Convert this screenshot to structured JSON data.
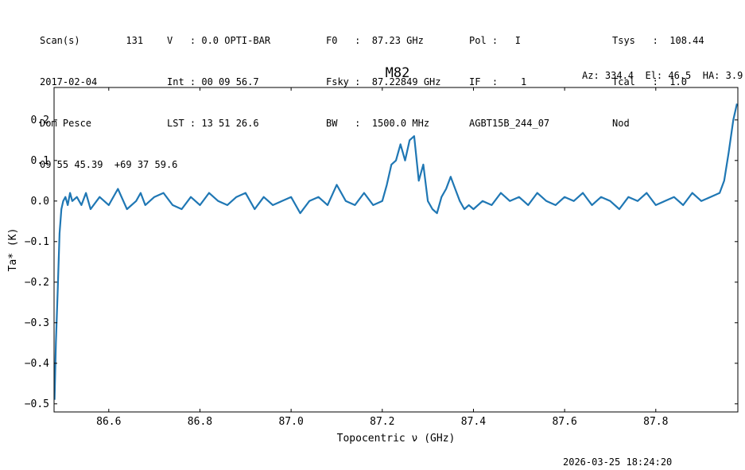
{
  "header": {
    "col1": [
      "Scan(s)        131",
      "2017-02-04",
      "Dom Pesce",
      "09 55 45.39  +69 37 59.6"
    ],
    "col2": [
      "V   : 0.0 OPTI-BAR",
      "Int : 00 09 56.7",
      "LST : 13 51 26.6"
    ],
    "col3": [
      "F0   :  87.23 GHz",
      "Fsky :  87.22849 GHz",
      "BW   :  1500.0 MHz"
    ],
    "col4": [
      "Pol :   I",
      "IF  :    1",
      "AGBT15B_244_07"
    ],
    "col5": [
      "Tsys   :  108.44",
      "Tcal   :  1.0",
      "Nod"
    ],
    "azelha": "Az: 334.4  El: 46.5  HA: 3.9"
  },
  "footer_timestamp": "2026-03-25 18:24:20",
  "colors": {
    "line": "#1f77b4"
  },
  "chart_data": {
    "type": "line",
    "title": "M82",
    "xlabel": "Topocentric ν (GHz)",
    "ylabel": "Ta* (K)",
    "xlim": [
      86.48,
      87.98
    ],
    "ylim": [
      -0.52,
      0.28
    ],
    "xticks": [
      86.6,
      86.8,
      87.0,
      87.2,
      87.4,
      87.6,
      87.8
    ],
    "xtick_labels": [
      "86.6",
      "86.8",
      "87.0",
      "87.2",
      "87.4",
      "87.6",
      "87.8"
    ],
    "yticks": [
      0.2,
      0.1,
      0.0,
      -0.1,
      -0.2,
      -0.3,
      -0.4,
      -0.5
    ],
    "ytick_labels": [
      "0.2",
      "0.1",
      "0.0",
      "−0.1",
      "−0.2",
      "−0.3",
      "−0.4",
      "−0.5"
    ],
    "grid": false,
    "series": [
      {
        "x": [
          86.481,
          86.484,
          86.488,
          86.492,
          86.496,
          86.5,
          86.505,
          86.51,
          86.515,
          86.52,
          86.53,
          86.54,
          86.55,
          86.56,
          86.58,
          86.6,
          86.62,
          86.64,
          86.66,
          86.67,
          86.68,
          86.7,
          86.72,
          86.74,
          86.76,
          86.78,
          86.8,
          86.82,
          86.84,
          86.86,
          86.88,
          86.9,
          86.92,
          86.94,
          86.96,
          86.98,
          87.0,
          87.02,
          87.04,
          87.06,
          87.08,
          87.1,
          87.12,
          87.14,
          87.16,
          87.18,
          87.2,
          87.21,
          87.22,
          87.23,
          87.24,
          87.25,
          87.26,
          87.27,
          87.28,
          87.29,
          87.3,
          87.31,
          87.32,
          87.33,
          87.34,
          87.35,
          87.36,
          87.37,
          87.38,
          87.39,
          87.4,
          87.42,
          87.44,
          87.46,
          87.48,
          87.5,
          87.52,
          87.54,
          87.56,
          87.58,
          87.6,
          87.62,
          87.64,
          87.66,
          87.68,
          87.7,
          87.72,
          87.74,
          87.76,
          87.78,
          87.8,
          87.82,
          87.84,
          87.86,
          87.88,
          87.9,
          87.92,
          87.94,
          87.95,
          87.96,
          87.97,
          87.978
        ],
        "y": [
          -0.49,
          -0.35,
          -0.22,
          -0.08,
          -0.02,
          0.0,
          0.01,
          -0.01,
          0.02,
          0.0,
          0.01,
          -0.01,
          0.02,
          -0.02,
          0.01,
          -0.01,
          0.03,
          -0.02,
          0.0,
          0.02,
          -0.01,
          0.01,
          0.02,
          -0.01,
          -0.02,
          0.01,
          -0.01,
          0.02,
          0.0,
          -0.01,
          0.01,
          0.02,
          -0.02,
          0.01,
          -0.01,
          0.0,
          0.01,
          -0.03,
          0.0,
          0.01,
          -0.01,
          0.04,
          0.0,
          -0.01,
          0.02,
          -0.01,
          0.0,
          0.04,
          0.09,
          0.1,
          0.14,
          0.1,
          0.15,
          0.16,
          0.05,
          0.09,
          0.0,
          -0.02,
          -0.03,
          0.01,
          0.03,
          0.06,
          0.03,
          0.0,
          -0.02,
          -0.01,
          -0.02,
          0.0,
          -0.01,
          0.02,
          0.0,
          0.01,
          -0.01,
          0.02,
          0.0,
          -0.01,
          0.01,
          0.0,
          0.02,
          -0.01,
          0.01,
          0.0,
          -0.02,
          0.01,
          0.0,
          0.02,
          -0.01,
          0.0,
          0.01,
          -0.01,
          0.02,
          0.0,
          0.01,
          0.02,
          0.05,
          0.12,
          0.2,
          0.24
        ]
      }
    ]
  }
}
